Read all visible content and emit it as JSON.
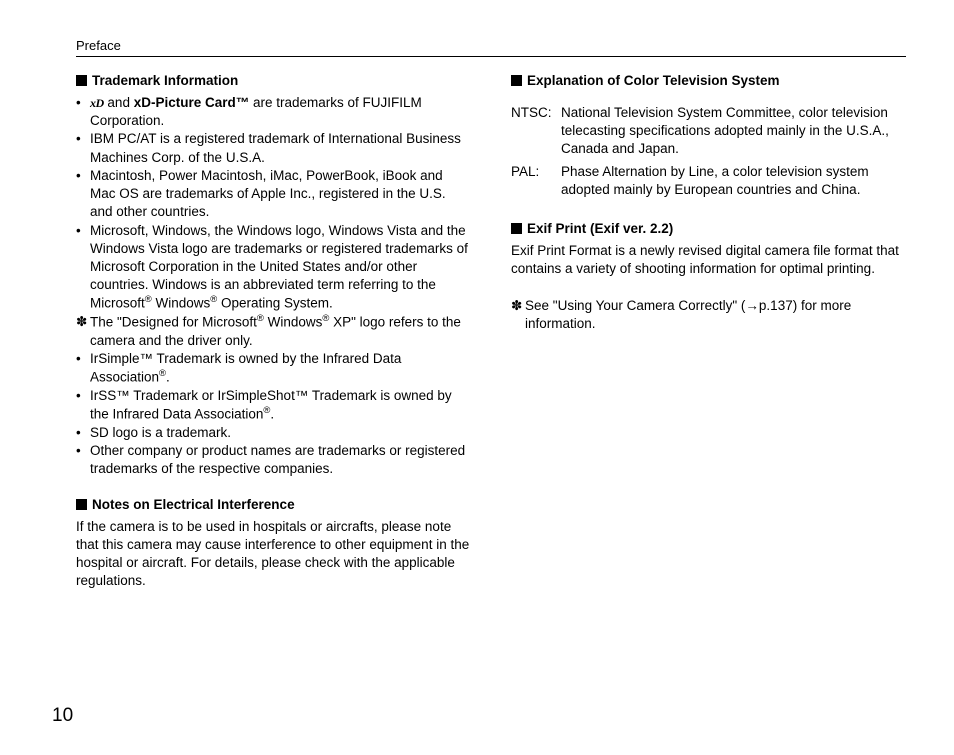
{
  "header": "Preface",
  "pageNumber": "10",
  "left": {
    "trademark": {
      "heading": "Trademark Information",
      "items": [
        {
          "marker": "•",
          "prefix_logo": true,
          "text_before": " and ",
          "bold": "xD-Picture Card™",
          "text_after": " are trademarks of FUJIFILM Corporation."
        },
        {
          "marker": "•",
          "text": "IBM PC/AT is a registered trademark of International Business Machines Corp. of the U.S.A."
        },
        {
          "marker": "•",
          "text": "Macintosh, Power Macintosh, iMac, PowerBook, iBook and Mac OS are trademarks of Apple Inc., registered in the U.S. and other countries."
        },
        {
          "marker": "•",
          "html": "Microsoft, Windows, the Windows logo, Windows Vista and the Windows Vista logo are trademarks or registered trademarks of Microsoft Corporation in the United States and/or other countries. Windows is an abbreviated term referring to the Microsoft<sup>®</sup> Windows<sup>®</sup> Operating System."
        },
        {
          "marker": "✽",
          "html": "The \"Designed for Microsoft<sup>®</sup> Windows<sup>®</sup> XP\" logo refers to the camera and the driver only."
        },
        {
          "marker": "•",
          "html": "IrSimple™ Trademark is owned by the Infrared Data Association<sup>®</sup>."
        },
        {
          "marker": "•",
          "html": "IrSS™ Trademark or IrSimpleShot™ Trademark is owned by the Infrared Data Association<sup>®</sup>."
        },
        {
          "marker": "•",
          "text": "SD logo is a trademark."
        },
        {
          "marker": "•",
          "text": "Other company or product names are trademarks or registered trademarks of the respective companies."
        }
      ]
    },
    "interference": {
      "heading": "Notes on Electrical Interference",
      "body": "If the camera is to be used in hospitals or aircrafts, please note that this camera may cause interference to other equipment in the hospital or aircraft. For details, please check with the applicable regulations."
    }
  },
  "right": {
    "colorTv": {
      "heading": "Explanation of Color Television System",
      "defs": [
        {
          "term": "NTSC:",
          "body": "National Television System Committee, color television telecasting specifications adopted mainly in the U.S.A., Canada and Japan."
        },
        {
          "term": "PAL:",
          "body": "Phase Alternation by Line, a color television system adopted mainly by European countries and China."
        }
      ]
    },
    "exif": {
      "heading": "Exif Print (Exif ver. 2.2)",
      "body": "Exif Print Format is a newly revised digital camera file format that contains a variety of shooting information for optimal printing."
    },
    "note": {
      "marker": "✽",
      "text": "See \"Using Your Camera Correctly\" (→p.137) for more information."
    }
  }
}
